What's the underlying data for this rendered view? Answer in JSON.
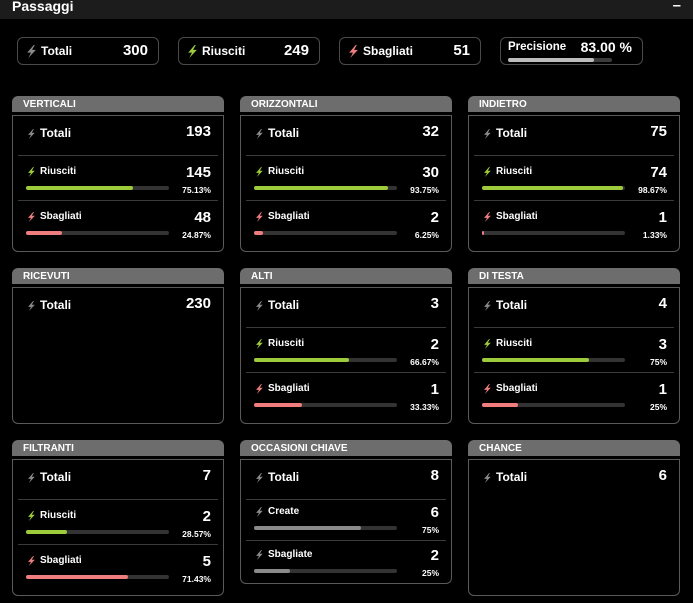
{
  "header": {
    "title": "Passaggi",
    "collapse_label": "–"
  },
  "colors": {
    "success": "#9ecb3c",
    "error": "#ef7d7d",
    "neutral": "#8a8a8a",
    "precision": "#bdbdbd"
  },
  "summary": {
    "totali": {
      "label": "Totali",
      "value": "300",
      "icon": "lightning-gray-icon"
    },
    "riusciti": {
      "label": "Riusciti",
      "value": "249",
      "icon": "lightning-green-icon"
    },
    "sbagliati": {
      "label": "Sbagliati",
      "value": "51",
      "icon": "lightning-red-icon"
    },
    "precisione": {
      "label": "Precisione",
      "value": "83.00 %",
      "fraction": 0.83
    }
  },
  "cards": {
    "verticali": {
      "title": "VERTICALI",
      "totali": {
        "label": "Totali",
        "value": "193"
      },
      "riusciti": {
        "label": "Riusciti",
        "value": "145",
        "pct": "75.13%",
        "fraction": 0.7513
      },
      "sbagliati": {
        "label": "Sbagliati",
        "value": "48",
        "pct": "24.87%",
        "fraction": 0.2487
      }
    },
    "orizzontali": {
      "title": "ORIZZONTALI",
      "totali": {
        "label": "Totali",
        "value": "32"
      },
      "riusciti": {
        "label": "Riusciti",
        "value": "30",
        "pct": "93.75%",
        "fraction": 0.9375
      },
      "sbagliati": {
        "label": "Sbagliati",
        "value": "2",
        "pct": "6.25%",
        "fraction": 0.0625
      }
    },
    "indietro": {
      "title": "INDIETRO",
      "totali": {
        "label": "Totali",
        "value": "75"
      },
      "riusciti": {
        "label": "Riusciti",
        "value": "74",
        "pct": "98.67%",
        "fraction": 0.9867
      },
      "sbagliati": {
        "label": "Sbagliati",
        "value": "1",
        "pct": "1.33%",
        "fraction": 0.0133
      }
    },
    "ricevuti": {
      "title": "RICEVUTI",
      "totali": {
        "label": "Totali",
        "value": "230"
      }
    },
    "alti": {
      "title": "ALTI",
      "totali": {
        "label": "Totali",
        "value": "3"
      },
      "riusciti": {
        "label": "Riusciti",
        "value": "2",
        "pct": "66.67%",
        "fraction": 0.6667
      },
      "sbagliati": {
        "label": "Sbagliati",
        "value": "1",
        "pct": "33.33%",
        "fraction": 0.3333
      }
    },
    "di_testa": {
      "title": "DI TESTA",
      "totali": {
        "label": "Totali",
        "value": "4"
      },
      "riusciti": {
        "label": "Riusciti",
        "value": "3",
        "pct": "75%",
        "fraction": 0.75
      },
      "sbagliati": {
        "label": "Sbagliati",
        "value": "1",
        "pct": "25%",
        "fraction": 0.25
      }
    },
    "filtranti": {
      "title": "FILTRANTI",
      "totali": {
        "label": "Totali",
        "value": "7"
      },
      "riusciti": {
        "label": "Riusciti",
        "value": "2",
        "pct": "28.57%",
        "fraction": 0.2857
      },
      "sbagliati": {
        "label": "Sbagliati",
        "value": "5",
        "pct": "71.43%",
        "fraction": 0.7143
      }
    },
    "occasioni_chiave": {
      "title": "OCCASIONI CHIAVE",
      "totali": {
        "label": "Totali",
        "value": "8"
      },
      "create": {
        "label": "Create",
        "value": "6",
        "pct": "75%",
        "fraction": 0.75
      },
      "sbagliate": {
        "label": "Sbagliate",
        "value": "2",
        "pct": "25%",
        "fraction": 0.25
      }
    },
    "chance": {
      "title": "CHANCE",
      "totali": {
        "label": "Totali",
        "value": "6"
      }
    }
  }
}
